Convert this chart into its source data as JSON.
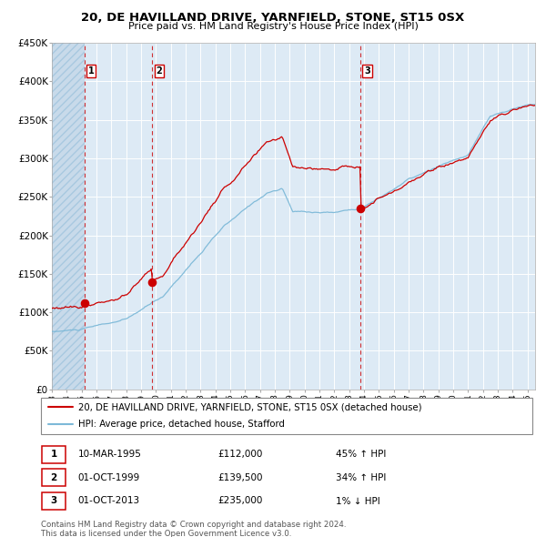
{
  "title": "20, DE HAVILLAND DRIVE, YARNFIELD, STONE, ST15 0SX",
  "subtitle": "Price paid vs. HM Land Registry's House Price Index (HPI)",
  "transactions": [
    {
      "num": 1,
      "date": "10-MAR-1995",
      "price": 112000,
      "pct": "45%",
      "direction": "↑"
    },
    {
      "num": 2,
      "date": "01-OCT-1999",
      "price": 139500,
      "pct": "34%",
      "direction": "↑"
    },
    {
      "num": 3,
      "date": "01-OCT-2013",
      "price": 235000,
      "pct": "1%",
      "direction": "↓"
    }
  ],
  "transaction_dates_decimal": [
    1995.19,
    1999.75,
    2013.75
  ],
  "transaction_prices": [
    112000,
    139500,
    235000
  ],
  "ylim": [
    0,
    450000
  ],
  "yticks": [
    0,
    50000,
    100000,
    150000,
    200000,
    250000,
    300000,
    350000,
    400000,
    450000
  ],
  "ytick_labels": [
    "£0",
    "£50K",
    "£100K",
    "£150K",
    "£200K",
    "£250K",
    "£300K",
    "£350K",
    "£400K",
    "£450K"
  ],
  "xlim_start": 1993.0,
  "xlim_end": 2025.5,
  "hpi_color": "#7db9d8",
  "price_color": "#cc0000",
  "bg_color": "#ddeaf5",
  "hatch_bg_color": "#c8daea",
  "grid_color": "#ffffff",
  "legend_line1": "20, DE HAVILLAND DRIVE, YARNFIELD, STONE, ST15 0SX (detached house)",
  "legend_line2": "HPI: Average price, detached house, Stafford",
  "footer1": "Contains HM Land Registry data © Crown copyright and database right 2024.",
  "footer2": "This data is licensed under the Open Government Licence v3.0."
}
